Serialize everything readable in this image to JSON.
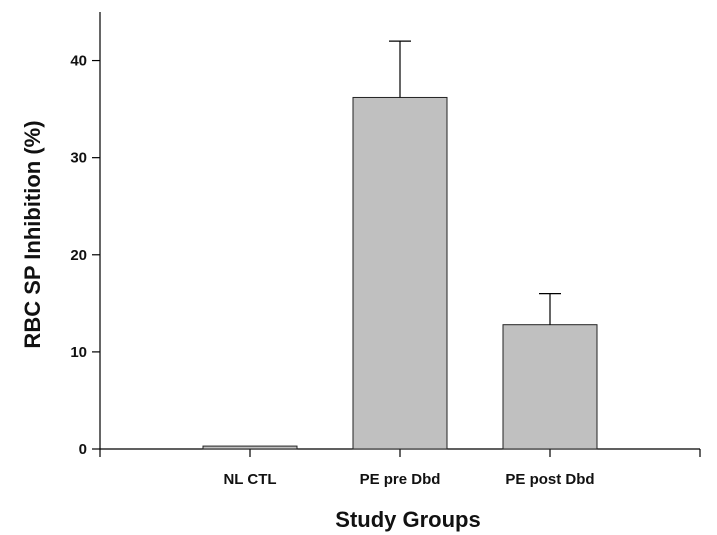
{
  "chart_data": {
    "type": "bar",
    "title": "",
    "xlabel": "Study Groups",
    "ylabel": "RBC SP Inhibition (%)",
    "categories": [
      "NL CTL",
      "PE pre Dbd",
      "PE post Dbd"
    ],
    "values": [
      0.3,
      36.2,
      12.8
    ],
    "error_plus": [
      0,
      5.8,
      3.2
    ],
    "ylim": [
      0,
      45
    ],
    "yticks": [
      0,
      10,
      20,
      30,
      40
    ],
    "xlim": [
      0,
      4
    ],
    "x_positions": [
      1,
      2,
      3
    ],
    "grid": false,
    "legend": "none",
    "bar_color": "#c0c0c0",
    "error_bar_direction": "up"
  }
}
